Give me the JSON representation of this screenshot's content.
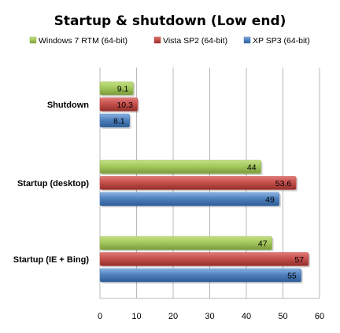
{
  "chart_data": {
    "type": "bar",
    "orientation": "horizontal",
    "title": "Startup & shutdown  (Low end)",
    "xlabel": "",
    "ylabel": "",
    "xlim": [
      0,
      60
    ],
    "ticks": [
      "0",
      "10",
      "20",
      "30",
      "40",
      "50",
      "60"
    ],
    "grid": true,
    "legend_position": "top",
    "categories": [
      "Shutdown",
      "Startup (desktop)",
      "Startup (IE + Bing)"
    ],
    "series": [
      {
        "name": "Windows 7 RTM  (64-bit)",
        "color": "#9bbb59",
        "values": [
          9.1,
          44,
          47
        ],
        "labels": [
          "9.1",
          "44",
          "47"
        ]
      },
      {
        "name": "Vista SP2 (64-bit)",
        "color": "#c0504d",
        "values": [
          10.3,
          53.6,
          57
        ],
        "labels": [
          "10.3",
          "53.6",
          "57"
        ]
      },
      {
        "name": "XP SP3 (64-bit)",
        "color": "#4f81bd",
        "values": [
          8.1,
          49,
          55
        ],
        "labels": [
          "8.1",
          "49",
          "55"
        ]
      }
    ]
  }
}
